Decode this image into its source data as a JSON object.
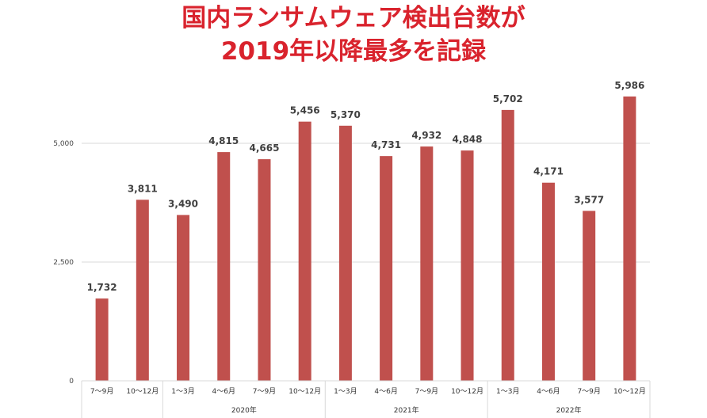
{
  "title_line1": "国内ランサムウェア検出台数が",
  "title_line2": "2019年以降最多を記録",
  "chart_data": {
    "type": "bar",
    "categories": [
      "7～9月",
      "10～12月",
      "1～3月",
      "4～6月",
      "7～9月",
      "10～12月",
      "1～3月",
      "4～6月",
      "7～9月",
      "10～12月",
      "1～3月",
      "4～6月",
      "7～9月",
      "10～12月"
    ],
    "values": [
      1732,
      3811,
      3490,
      4815,
      4665,
      5456,
      5370,
      4731,
      4932,
      4848,
      5702,
      4171,
      3577,
      5986
    ],
    "data_labels": [
      "1,732",
      "3,811",
      "3,490",
      "4,815",
      "4,665",
      "5,456",
      "5,370",
      "4,731",
      "4,932",
      "4,848",
      "5,702",
      "4,171",
      "3,577",
      "5,986"
    ],
    "groups": [
      {
        "label": "",
        "count": 2
      },
      {
        "label": "2020年",
        "count": 4
      },
      {
        "label": "2021年",
        "count": 4
      },
      {
        "label": "2022年",
        "count": 4
      }
    ],
    "y_ticks": [
      0,
      2500,
      5000
    ],
    "y_tick_labels": [
      "0",
      "2,500",
      "5,000"
    ],
    "ylim": [
      0,
      6000
    ],
    "xlabel": "",
    "ylabel": "",
    "grid": true,
    "bar_color": "#c0504d",
    "grid_color": "#d9d9d9",
    "title_color": "#d9232d"
  }
}
